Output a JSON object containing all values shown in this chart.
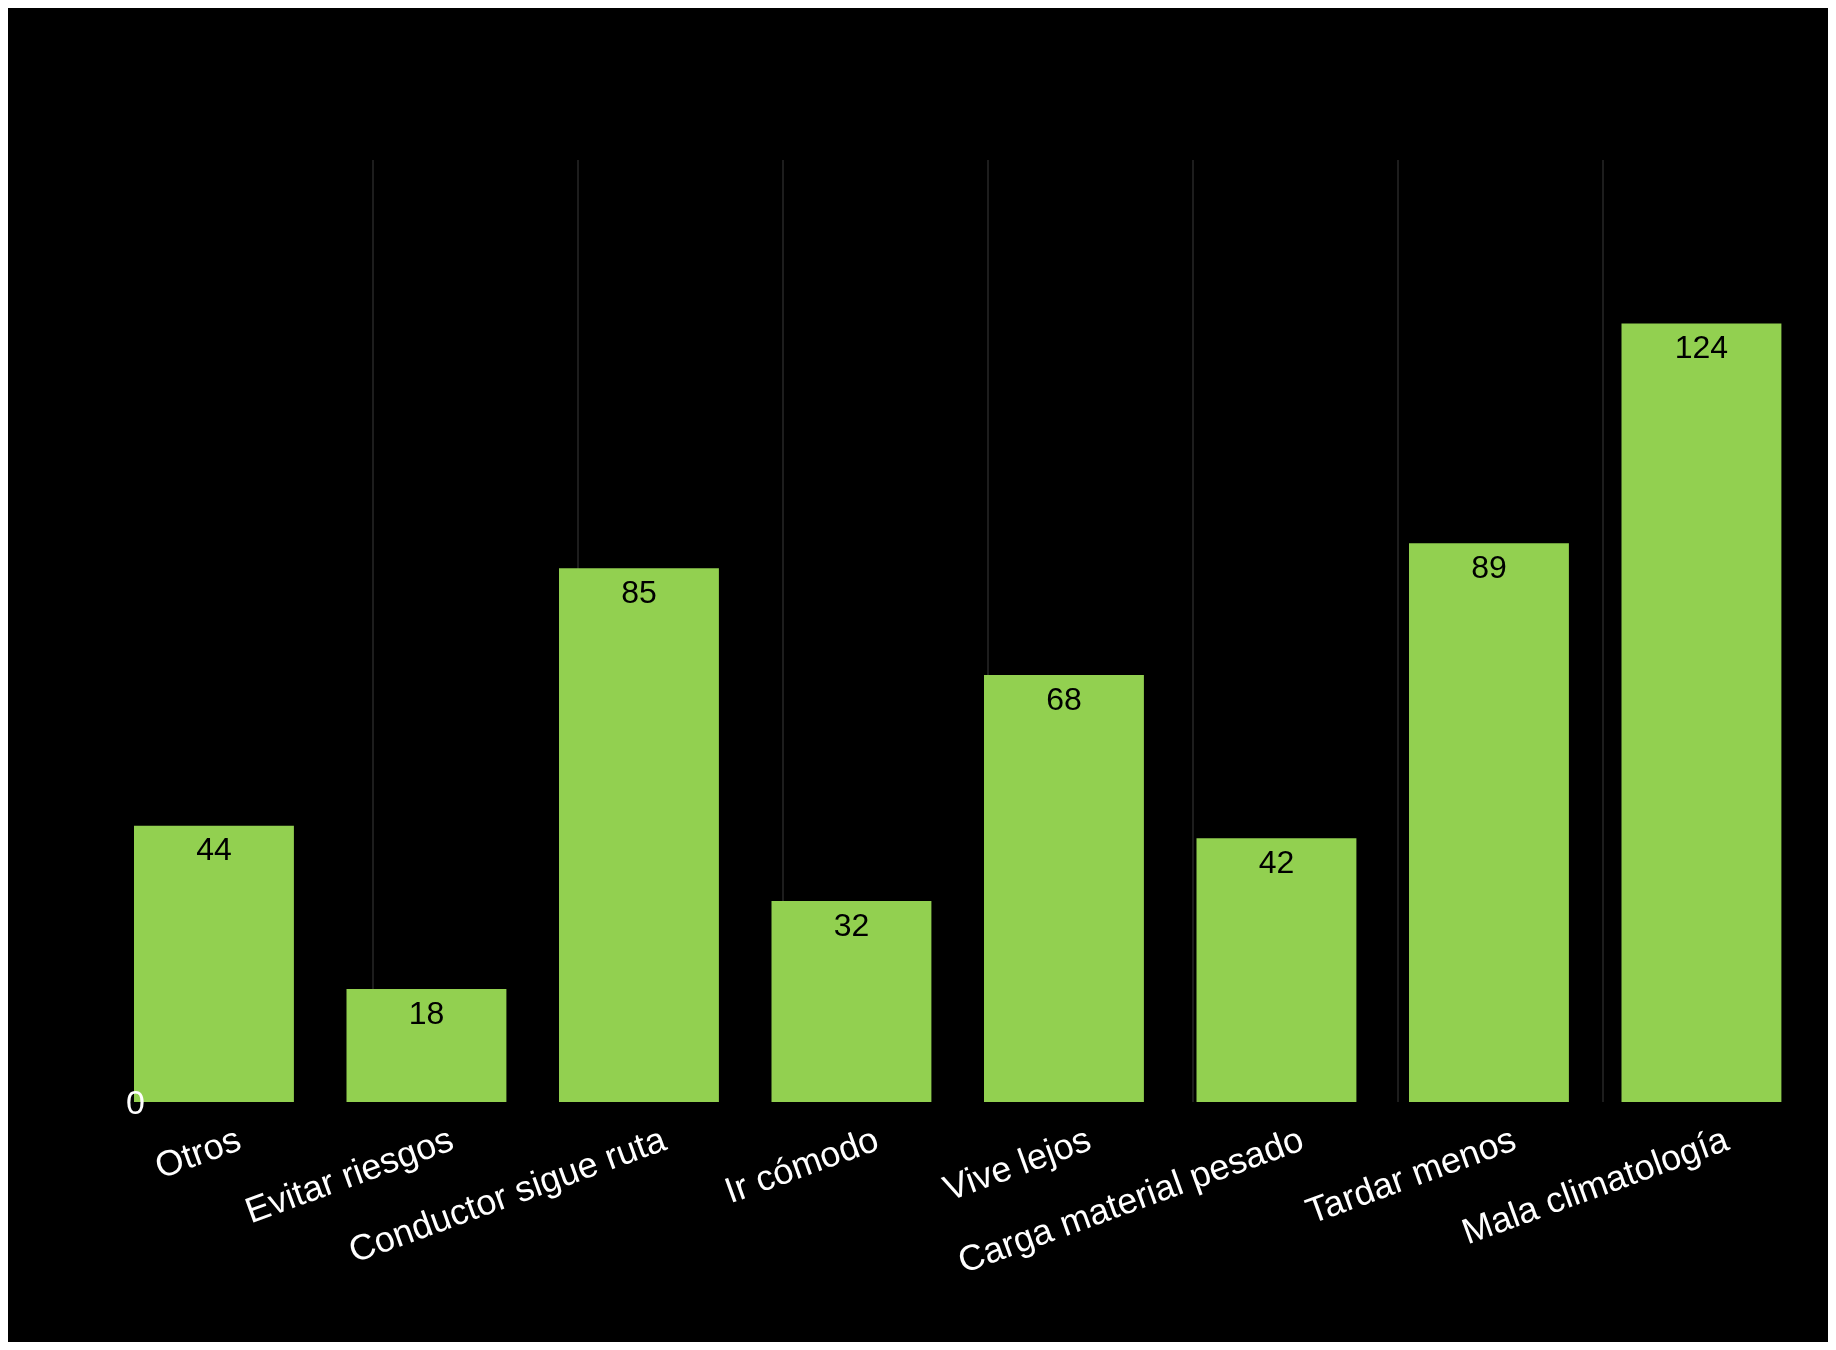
{
  "chart_data": {
    "type": "bar",
    "categories": [
      "Otros",
      "Evitar riesgos",
      "Conductor sigue ruta",
      "Ir cómodo",
      "Vive lejos",
      "Carga material pesado",
      "Tardar menos",
      "Mala climatología"
    ],
    "values": [
      44,
      18,
      85,
      32,
      68,
      42,
      89,
      124
    ],
    "color": "#92d050",
    "annotations": [
      "0"
    ],
    "data_labels": true,
    "grid": "x"
  }
}
